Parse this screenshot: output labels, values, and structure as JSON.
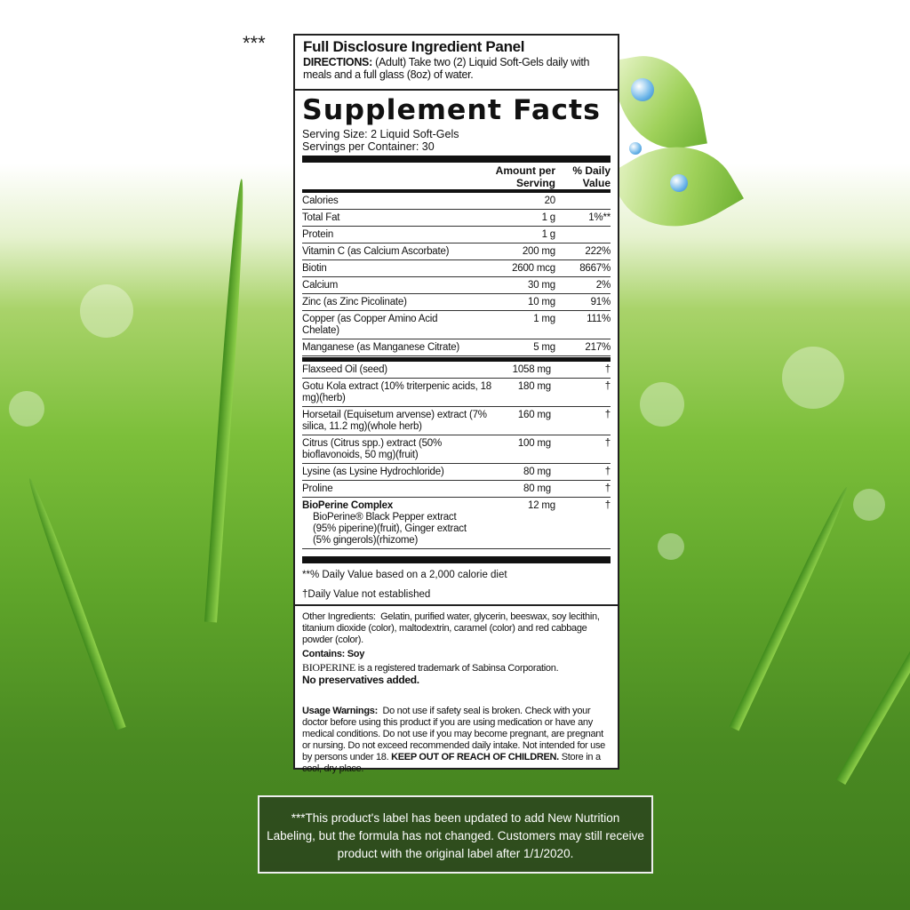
{
  "marker": "***",
  "header": {
    "title": "Full Disclosure Ingredient Panel",
    "directions_label": "DIRECTIONS:",
    "directions": "(Adult) Take two (2) Liquid Soft-Gels daily with meals and a full glass (8oz) of water."
  },
  "facts": {
    "title": "Supplement Facts",
    "serving_size": "Serving Size:  2 Liquid Soft-Gels",
    "servings": "Servings per Container:  30",
    "col_amount": "Amount per Serving",
    "col_dv": "% Daily Value",
    "rows": [
      {
        "name": "Calories",
        "amount": "20",
        "dv": ""
      },
      {
        "name": "Total Fat",
        "amount": "1 g",
        "dv": "1%**"
      },
      {
        "name": "Protein",
        "amount": "1 g",
        "dv": ""
      },
      {
        "name": "Vitamin C (as Calcium Ascorbate)",
        "amount": "200 mg",
        "dv": "222%"
      },
      {
        "name": "Biotin",
        "amount": "2600 mcg",
        "dv": "8667%"
      },
      {
        "name": "Calcium",
        "amount": "30 mg",
        "dv": "2%"
      },
      {
        "name": "Zinc (as Zinc Picolinate)",
        "amount": "10 mg",
        "dv": "91%"
      },
      {
        "name": "Copper (as Copper Amino Acid Chelate)",
        "amount": "1 mg",
        "dv": "111%"
      },
      {
        "name": "Manganese (as Manganese Citrate)",
        "amount": "5 mg",
        "dv": "217%"
      }
    ],
    "rows2": [
      {
        "name": "Flaxseed Oil (seed)",
        "amount": "1058 mg",
        "dv": "†"
      },
      {
        "name": "Gotu Kola extract (10% triterpenic acids, 18 mg)(herb)",
        "amount": "180 mg",
        "dv": "†"
      },
      {
        "name": "Horsetail (Equisetum arvense) extract (7% silica, 11.2 mg)(whole herb)",
        "amount": "160 mg",
        "dv": "†"
      },
      {
        "name": "Citrus (Citrus spp.) extract (50% bioflavonoids, 50 mg)(fruit)",
        "amount": "100 mg",
        "dv": "†"
      },
      {
        "name": "Lysine (as Lysine Hydrochloride)",
        "amount": "80 mg",
        "dv": "†"
      },
      {
        "name": "Proline",
        "amount": "80 mg",
        "dv": "†"
      },
      {
        "name": "BioPerine Complex",
        "amount": "12 mg",
        "dv": "†",
        "sub": "BioPerine® Black Pepper extract (95% piperine)(fruit), Ginger extract (5% gingerols)(rhizome)"
      }
    ],
    "foot1": "**% Daily Value based on a 2,000 calorie diet",
    "foot2": "†Daily Value not established"
  },
  "other": {
    "label": "Other Ingredients:",
    "text": "Gelatin, purified water, glycerin, beeswax, soy lecithin, titanium dioxide (color), maltodextrin, caramel (color) and red cabbage powder (color).",
    "contains": "Contains: Soy",
    "bioperine_logo": "BIOPERINE",
    "trademark": "is a registered trademark of Sabinsa Corporation.",
    "nopres": "No preservatives added.",
    "warn_label": "Usage Warnings:",
    "warn": "Do not use if safety seal is broken. Check with your doctor before using this product if you are using medication or have any medical conditions. Do not use if you may become pregnant, are pregnant or nursing. Do not exceed recommended daily intake. Not intended for use by persons under 18.",
    "keep": "KEEP OUT OF REACH OF CHILDREN.",
    "store": "Store in a cool, dry place."
  },
  "note": "***This product's label has been updated to add New Nutrition Labeling, but the formula has not changed. Customers may still receive product with the original label after 1/1/2020."
}
